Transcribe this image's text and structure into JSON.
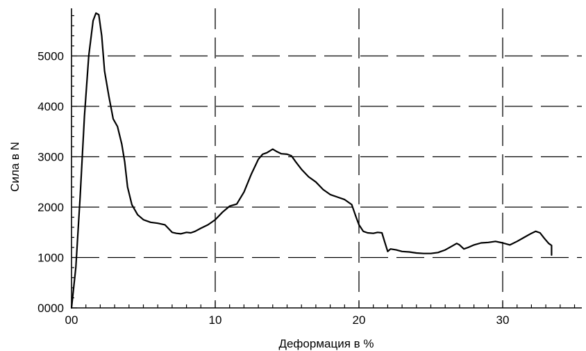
{
  "chart_data": {
    "type": "line",
    "title": "",
    "xlabel": "Деформация в %",
    "ylabel": "Сила в N",
    "xlim": [
      0,
      35.5
    ],
    "ylim": [
      0,
      6000
    ],
    "x_ticks": [
      0,
      10,
      20,
      30
    ],
    "x_tick_labels": [
      "00",
      "10",
      "20",
      "30"
    ],
    "y_ticks": [
      0,
      1000,
      2000,
      3000,
      4000,
      5000
    ],
    "y_tick_labels": [
      "0000",
      "1000",
      "2000",
      "3000",
      "4000",
      "5000"
    ],
    "grid": "dashed",
    "line_color": "#000000",
    "series": [
      {
        "x": [
          0.0,
          0.3,
          0.6,
          0.9,
          1.2,
          1.5,
          1.7,
          1.9,
          2.1,
          2.3,
          2.6,
          2.9,
          3.2,
          3.5,
          3.7,
          3.9,
          4.2,
          4.6,
          5.0,
          5.5,
          6.0,
          6.5,
          7.0,
          7.3,
          7.6,
          8.0,
          8.3,
          8.6,
          9.0,
          9.5,
          10.0,
          10.5,
          11.0,
          11.5,
          12.0,
          12.5,
          13.0,
          13.3,
          13.6,
          14.0,
          14.3,
          14.6,
          15.0,
          15.3,
          15.6,
          16.0,
          16.5,
          17.0,
          17.5,
          18.0,
          18.5,
          19.0,
          19.5,
          19.8,
          20.0,
          20.3,
          20.6,
          21.0,
          21.3,
          21.6,
          21.8,
          22.0,
          22.2,
          22.6,
          23.0,
          23.5,
          24.0,
          24.5,
          25.0,
          25.5,
          26.0,
          26.5,
          26.8,
          27.0,
          27.3,
          27.6,
          28.0,
          28.5,
          29.0,
          29.5,
          30.0,
          30.5,
          31.0,
          31.5,
          32.0,
          32.3,
          32.6,
          32.9,
          33.2,
          33.4,
          33.4
        ],
        "values": [
          0,
          800,
          2200,
          3800,
          5000,
          5700,
          5850,
          5820,
          5400,
          4700,
          4200,
          3750,
          3600,
          3250,
          2900,
          2400,
          2050,
          1850,
          1750,
          1700,
          1680,
          1650,
          1500,
          1480,
          1470,
          1500,
          1490,
          1520,
          1580,
          1650,
          1750,
          1900,
          2020,
          2060,
          2300,
          2650,
          2950,
          3050,
          3080,
          3150,
          3100,
          3060,
          3050,
          3020,
          2900,
          2750,
          2600,
          2500,
          2350,
          2250,
          2200,
          2150,
          2050,
          1800,
          1650,
          1520,
          1490,
          1480,
          1500,
          1490,
          1300,
          1120,
          1170,
          1150,
          1120,
          1110,
          1090,
          1080,
          1080,
          1100,
          1150,
          1230,
          1280,
          1250,
          1170,
          1200,
          1250,
          1290,
          1300,
          1320,
          1290,
          1250,
          1320,
          1400,
          1480,
          1520,
          1490,
          1380,
          1280,
          1240,
          1050
        ]
      }
    ]
  }
}
